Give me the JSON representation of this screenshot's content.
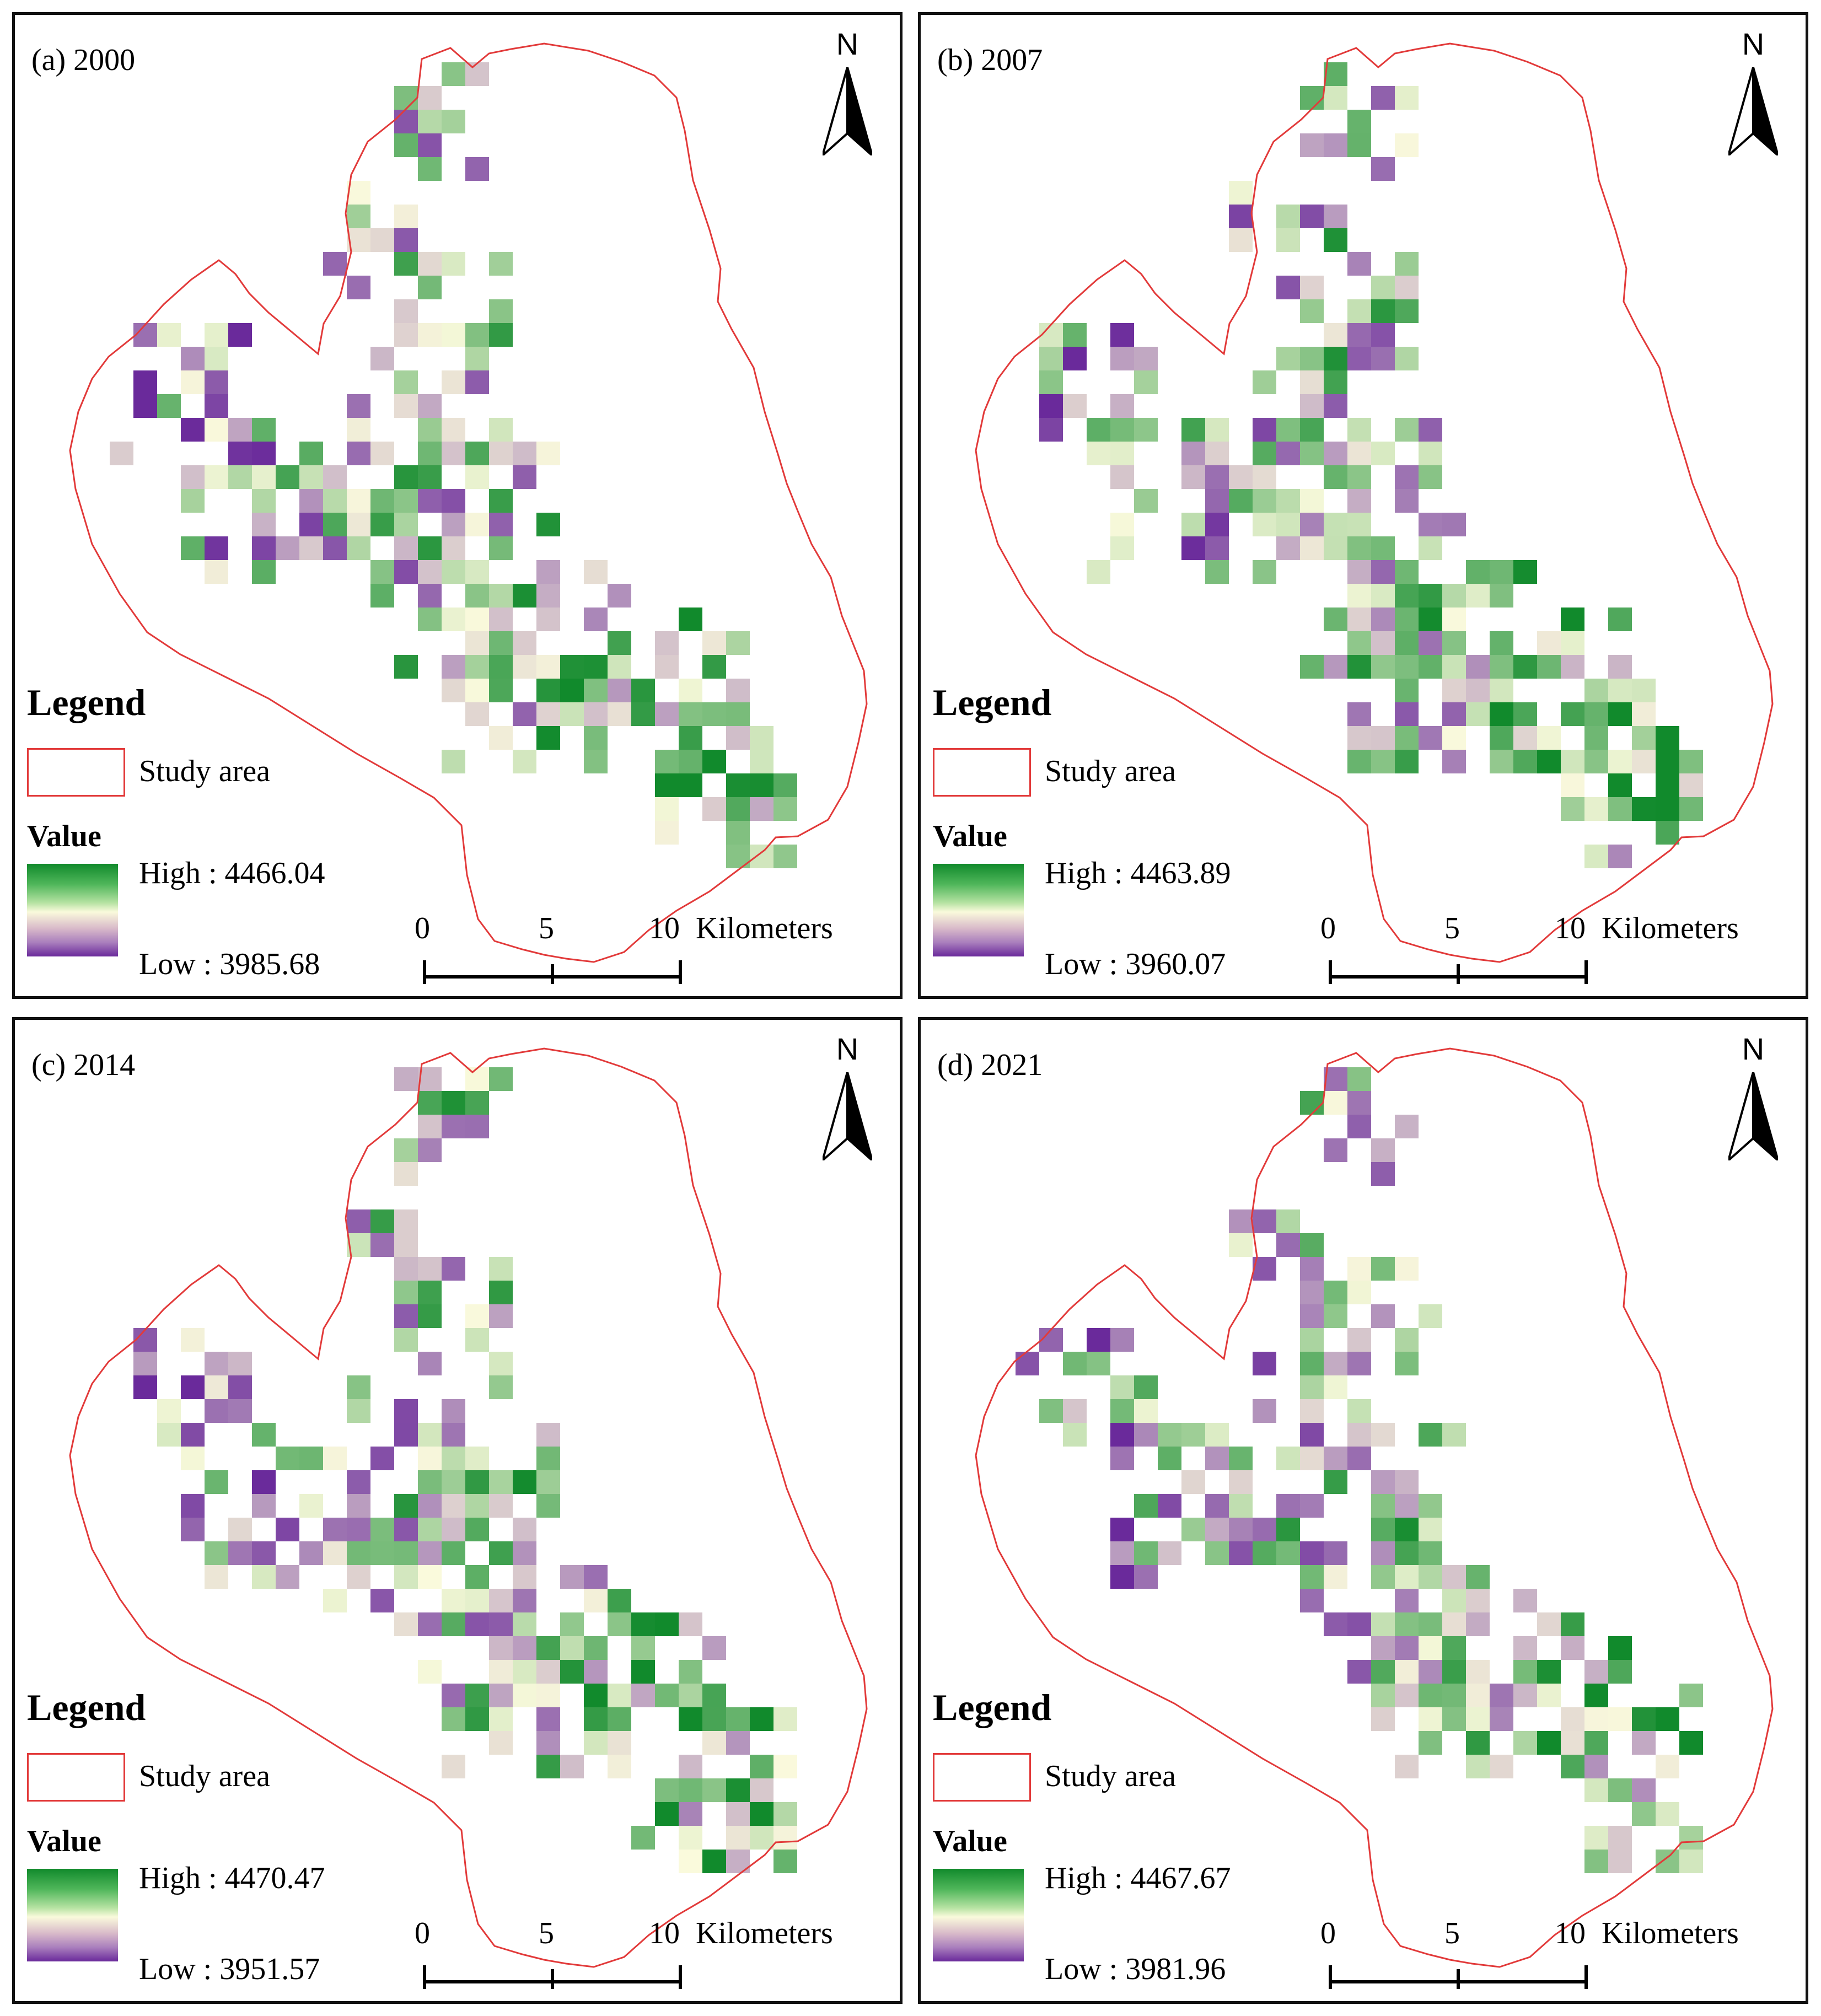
{
  "panels": [
    {
      "id": "a",
      "title": "(a) 2000",
      "high": "High : 4466.04",
      "low": "Low : 3985.68",
      "seed": 11
    },
    {
      "id": "b",
      "title": "(b) 2007",
      "high": "High : 4463.89",
      "low": "Low : 3960.07",
      "seed": 23
    },
    {
      "id": "c",
      "title": "(c) 2014",
      "high": "High : 4470.47",
      "low": "Low : 3951.57",
      "seed": 37
    },
    {
      "id": "d",
      "title": "(d) 2021",
      "high": "High : 4467.67",
      "low": "Low : 3981.96",
      "seed": 53
    }
  ],
  "legend": {
    "title": "Legend",
    "study_area_label": "Study area",
    "value_title": "Value",
    "study_area_color": "#e23a3a"
  },
  "north_arrow": {
    "letter": "N"
  },
  "scale_bar": {
    "ticks": [
      "0",
      "5",
      "10"
    ],
    "units": "Kilometers"
  },
  "color_ramp": {
    "high": "#118a2c",
    "mid": "#fafadc",
    "low": "#6a2a9b"
  }
}
